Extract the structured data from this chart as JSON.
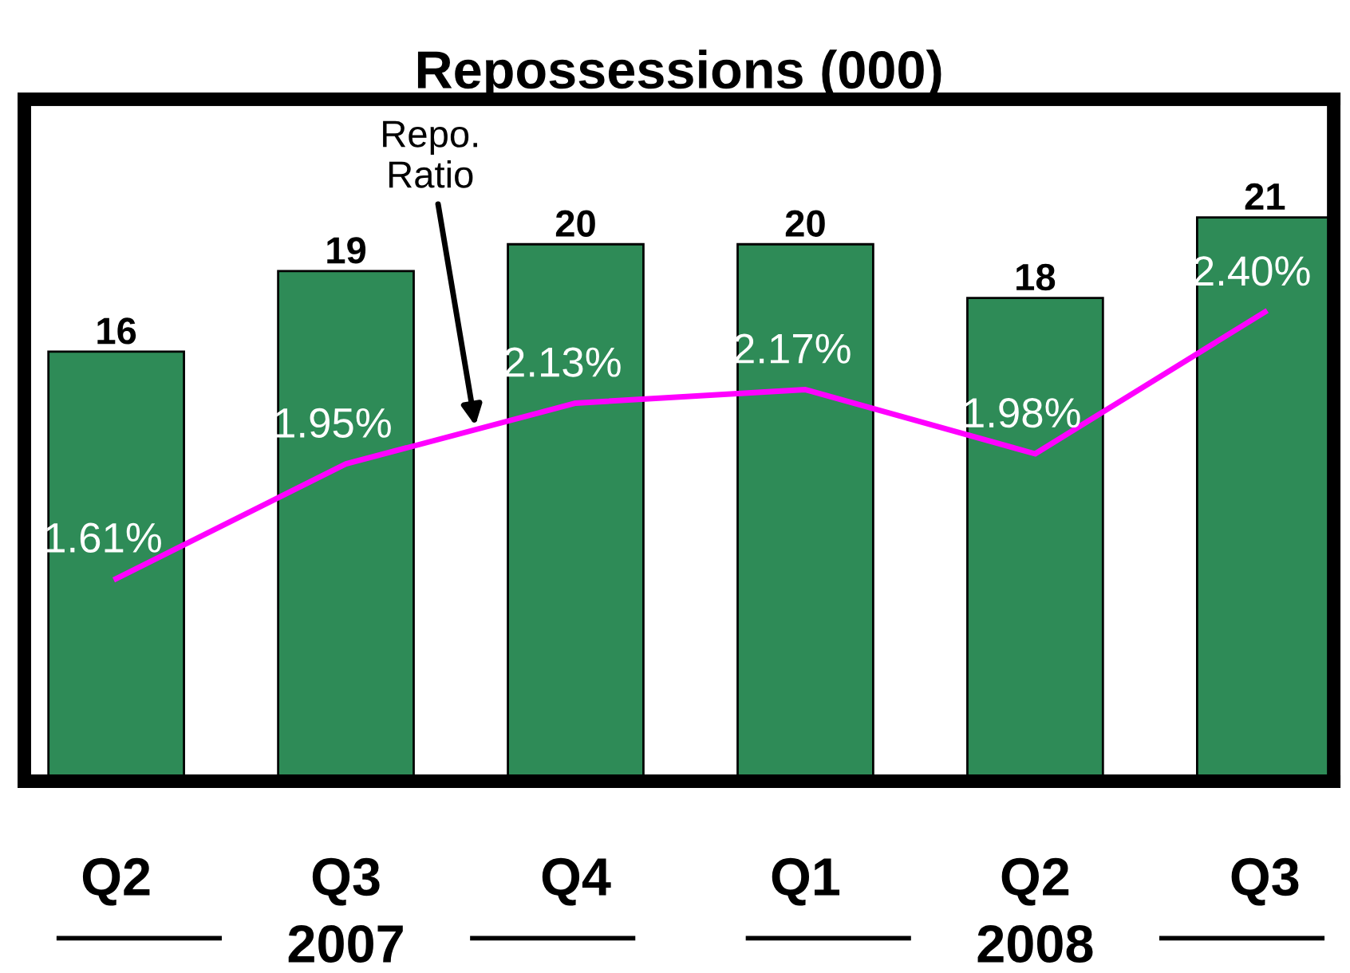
{
  "chart_data": {
    "type": "bar",
    "title": "Repossessions (000)",
    "categories": [
      "Q2",
      "Q3",
      "Q4",
      "Q1",
      "Q2",
      "Q3"
    ],
    "series": [
      {
        "color": "#2e8b57",
        "values": [
          16,
          19,
          20,
          20,
          18,
          21
        ],
        "value_labels": [
          "16",
          "19",
          "20",
          "20",
          "18",
          "21"
        ]
      },
      {
        "type": "line",
        "axis": "y2",
        "color": "#ff00ff",
        "marker": "none",
        "line_style": "solid",
        "values": [
          1.61,
          1.95,
          2.13,
          2.17,
          1.98,
          2.4
        ],
        "value_labels": [
          "1.61%",
          "1.95%",
          "2.13%",
          "2.17%",
          "1.98%",
          "2.40%"
        ]
      }
    ],
    "ylim": [
      0,
      25.4
    ],
    "y2lim": [
      1.01,
      3.03
    ],
    "tick_labels": "x",
    "grid": false,
    "legend": false,
    "annotations": [
      "Repo.\nRatio",
      "2007",
      "2008"
    ]
  }
}
